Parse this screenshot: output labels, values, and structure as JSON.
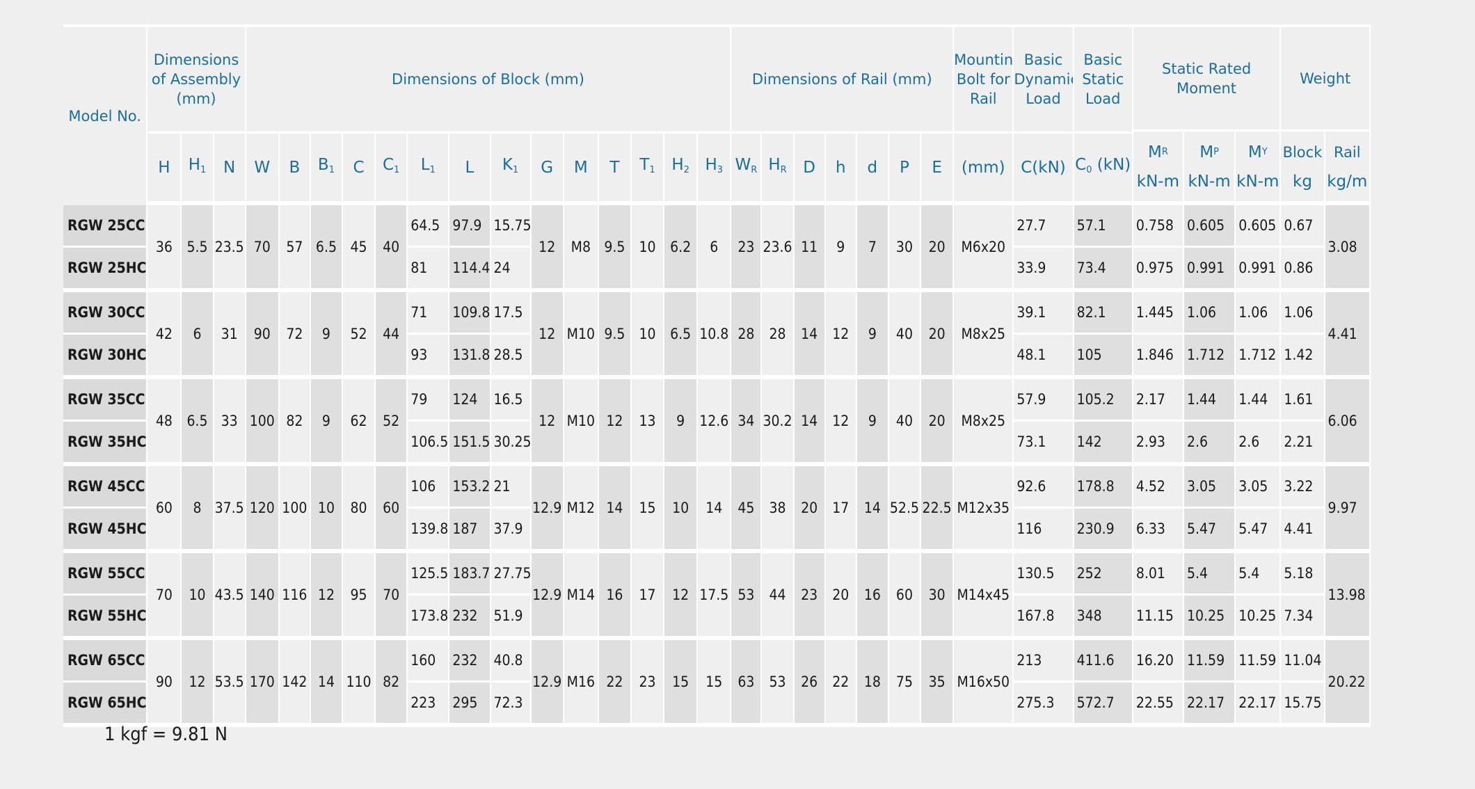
{
  "header": {
    "model_no": "Model No.",
    "dim_assembly": "Dimensions of Assembly (mm)",
    "dim_block": "Dimensions of Block (mm)",
    "dim_rail": "Dimensions of Rail (mm)",
    "mounting_bolt": "Mounting Bolt for Rail",
    "basic_dynamic": "Basic Dynamic Load",
    "basic_static": "Basic Static Load",
    "static_moment": "Static Rated Moment",
    "weight": "Weight",
    "sym": {
      "H": "H",
      "H1": "H",
      "H1_sub": "1",
      "N": "N",
      "W": "W",
      "B": "B",
      "B1": "B",
      "B1_sub": "1",
      "C": "C",
      "C1": "C",
      "C1_sub": "1",
      "L1": "L",
      "L1_sub": "1",
      "L": "L",
      "K1": "K",
      "K1_sub": "1",
      "G": "G",
      "M": "M",
      "T": "T",
      "T1": "T",
      "T1_sub": "1",
      "H2": "H",
      "H2_sub": "2",
      "H3": "H",
      "H3_sub": "3",
      "WR": "W",
      "WR_sub": "R",
      "HR": "H",
      "HR_sub": "R",
      "D": "D",
      "h": "h",
      "d": "d",
      "P": "P",
      "E": "E",
      "bolt_unit": "(mm)",
      "dyn": "C(kN)",
      "stat": "C",
      "stat_sub": "0",
      "stat_rest": " (kN)",
      "MR": "M",
      "MR_sub": "R",
      "MP": "M",
      "MP_sub": "P",
      "MY": "M",
      "MY_sub": "Y",
      "moment_unit": "kN-m",
      "block": "Block",
      "rail": "Rail",
      "block_unit": "kg",
      "rail_unit": "kg/m"
    }
  },
  "groups": [
    {
      "H": "36",
      "H1": "5.5",
      "N": "23.5",
      "W": "70",
      "B": "57",
      "B1": "6.5",
      "C": "45",
      "C1": "40",
      "G": "12",
      "M": "M8",
      "T": "9.5",
      "T1": "10",
      "H2": "6.2",
      "H3": "6",
      "WR": "23",
      "HR": "23.6",
      "D": "11",
      "h": "9",
      "d": "7",
      "P": "30",
      "E": "20",
      "bolt": "M6x20",
      "rail_w": "3.08",
      "rows": [
        {
          "model": "RGW 25CC",
          "L1": "64.5",
          "L": "97.9",
          "K1": "15.75",
          "dyn": "27.7",
          "stat": "57.1",
          "MR": "0.758",
          "MP": "0.605",
          "MY": "0.605",
          "block": "0.67"
        },
        {
          "model": "RGW 25HC",
          "L1": "81",
          "L": "114.4",
          "K1": "24",
          "dyn": "33.9",
          "stat": "73.4",
          "MR": "0.975",
          "MP": "0.991",
          "MY": "0.991",
          "block": "0.86"
        }
      ]
    },
    {
      "H": "42",
      "H1": "6",
      "N": "31",
      "W": "90",
      "B": "72",
      "B1": "9",
      "C": "52",
      "C1": "44",
      "G": "12",
      "M": "M10",
      "T": "9.5",
      "T1": "10",
      "H2": "6.5",
      "H3": "10.8",
      "WR": "28",
      "HR": "28",
      "D": "14",
      "h": "12",
      "d": "9",
      "P": "40",
      "E": "20",
      "bolt": "M8x25",
      "rail_w": "4.41",
      "rows": [
        {
          "model": "RGW 30CC",
          "L1": "71",
          "L": "109.8",
          "K1": "17.5",
          "dyn": "39.1",
          "stat": "82.1",
          "MR": "1.445",
          "MP": "1.06",
          "MY": "1.06",
          "block": "1.06"
        },
        {
          "model": "RGW 30HC",
          "L1": "93",
          "L": "131.8",
          "K1": "28.5",
          "dyn": "48.1",
          "stat": "105",
          "MR": "1.846",
          "MP": "1.712",
          "MY": "1.712",
          "block": "1.42"
        }
      ]
    },
    {
      "H": "48",
      "H1": "6.5",
      "N": "33",
      "W": "100",
      "B": "82",
      "B1": "9",
      "C": "62",
      "C1": "52",
      "G": "12",
      "M": "M10",
      "T": "12",
      "T1": "13",
      "H2": "9",
      "H3": "12.6",
      "WR": "34",
      "HR": "30.2",
      "D": "14",
      "h": "12",
      "d": "9",
      "P": "40",
      "E": "20",
      "bolt": "M8x25",
      "rail_w": "6.06",
      "rows": [
        {
          "model": "RGW 35CC",
          "L1": "79",
          "L": "124",
          "K1": "16.5",
          "dyn": "57.9",
          "stat": "105.2",
          "MR": "2.17",
          "MP": "1.44",
          "MY": "1.44",
          "block": "1.61"
        },
        {
          "model": "RGW 35HC",
          "L1": "106.5",
          "L": "151.5",
          "K1": "30.25",
          "dyn": "73.1",
          "stat": "142",
          "MR": "2.93",
          "MP": "2.6",
          "MY": "2.6",
          "block": "2.21"
        }
      ]
    },
    {
      "H": "60",
      "H1": "8",
      "N": "37.5",
      "W": "120",
      "B": "100",
      "B1": "10",
      "C": "80",
      "C1": "60",
      "G": "12.9",
      "M": "M12",
      "T": "14",
      "T1": "15",
      "H2": "10",
      "H3": "14",
      "WR": "45",
      "HR": "38",
      "D": "20",
      "h": "17",
      "d": "14",
      "P": "52.5",
      "E": "22.5",
      "bolt": "M12x35",
      "rail_w": "9.97",
      "rows": [
        {
          "model": "RGW 45CC",
          "L1": "106",
          "L": "153.2",
          "K1": "21",
          "dyn": "92.6",
          "stat": "178.8",
          "MR": "4.52",
          "MP": "3.05",
          "MY": "3.05",
          "block": "3.22"
        },
        {
          "model": "RGW 45HC",
          "L1": "139.8",
          "L": "187",
          "K1": "37.9",
          "dyn": "116",
          "stat": "230.9",
          "MR": "6.33",
          "MP": "5.47",
          "MY": "5.47",
          "block": "4.41"
        }
      ]
    },
    {
      "H": "70",
      "H1": "10",
      "N": "43.5",
      "W": "140",
      "B": "116",
      "B1": "12",
      "C": "95",
      "C1": "70",
      "G": "12.9",
      "M": "M14",
      "T": "16",
      "T1": "17",
      "H2": "12",
      "H3": "17.5",
      "WR": "53",
      "HR": "44",
      "D": "23",
      "h": "20",
      "d": "16",
      "P": "60",
      "E": "30",
      "bolt": "M14x45",
      "rail_w": "13.98",
      "rows": [
        {
          "model": "RGW 55CC",
          "L1": "125.5",
          "L": "183.7",
          "K1": "27.75",
          "dyn": "130.5",
          "stat": "252",
          "MR": "8.01",
          "MP": "5.4",
          "MY": "5.4",
          "block": "5.18"
        },
        {
          "model": "RGW 55HC",
          "L1": "173.8",
          "L": "232",
          "K1": "51.9",
          "dyn": "167.8",
          "stat": "348",
          "MR": "11.15",
          "MP": "10.25",
          "MY": "10.25",
          "block": "7.34"
        }
      ]
    },
    {
      "H": "90",
      "H1": "12",
      "N": "53.5",
      "W": "170",
      "B": "142",
      "B1": "14",
      "C": "110",
      "C1": "82",
      "G": "12.9",
      "M": "M16",
      "T": "22",
      "T1": "23",
      "H2": "15",
      "H3": "15",
      "WR": "63",
      "HR": "53",
      "D": "26",
      "h": "22",
      "d": "18",
      "P": "75",
      "E": "35",
      "bolt": "M16x50",
      "rail_w": "20.22",
      "rows": [
        {
          "model": "RGW 65CC",
          "L1": "160",
          "L": "232",
          "K1": "40.8",
          "dyn": "213",
          "stat": "411.6",
          "MR": "16.20",
          "MP": "11.59",
          "MY": "11.59",
          "block": "11.04"
        },
        {
          "model": "RGW 65HC",
          "L1": "223",
          "L": "295",
          "K1": "72.3",
          "dyn": "275.3",
          "stat": "572.7",
          "MR": "22.55",
          "MP": "22.17",
          "MY": "22.17",
          "block": "15.75"
        }
      ]
    }
  ],
  "note": "1 kgf = 9.81 N"
}
